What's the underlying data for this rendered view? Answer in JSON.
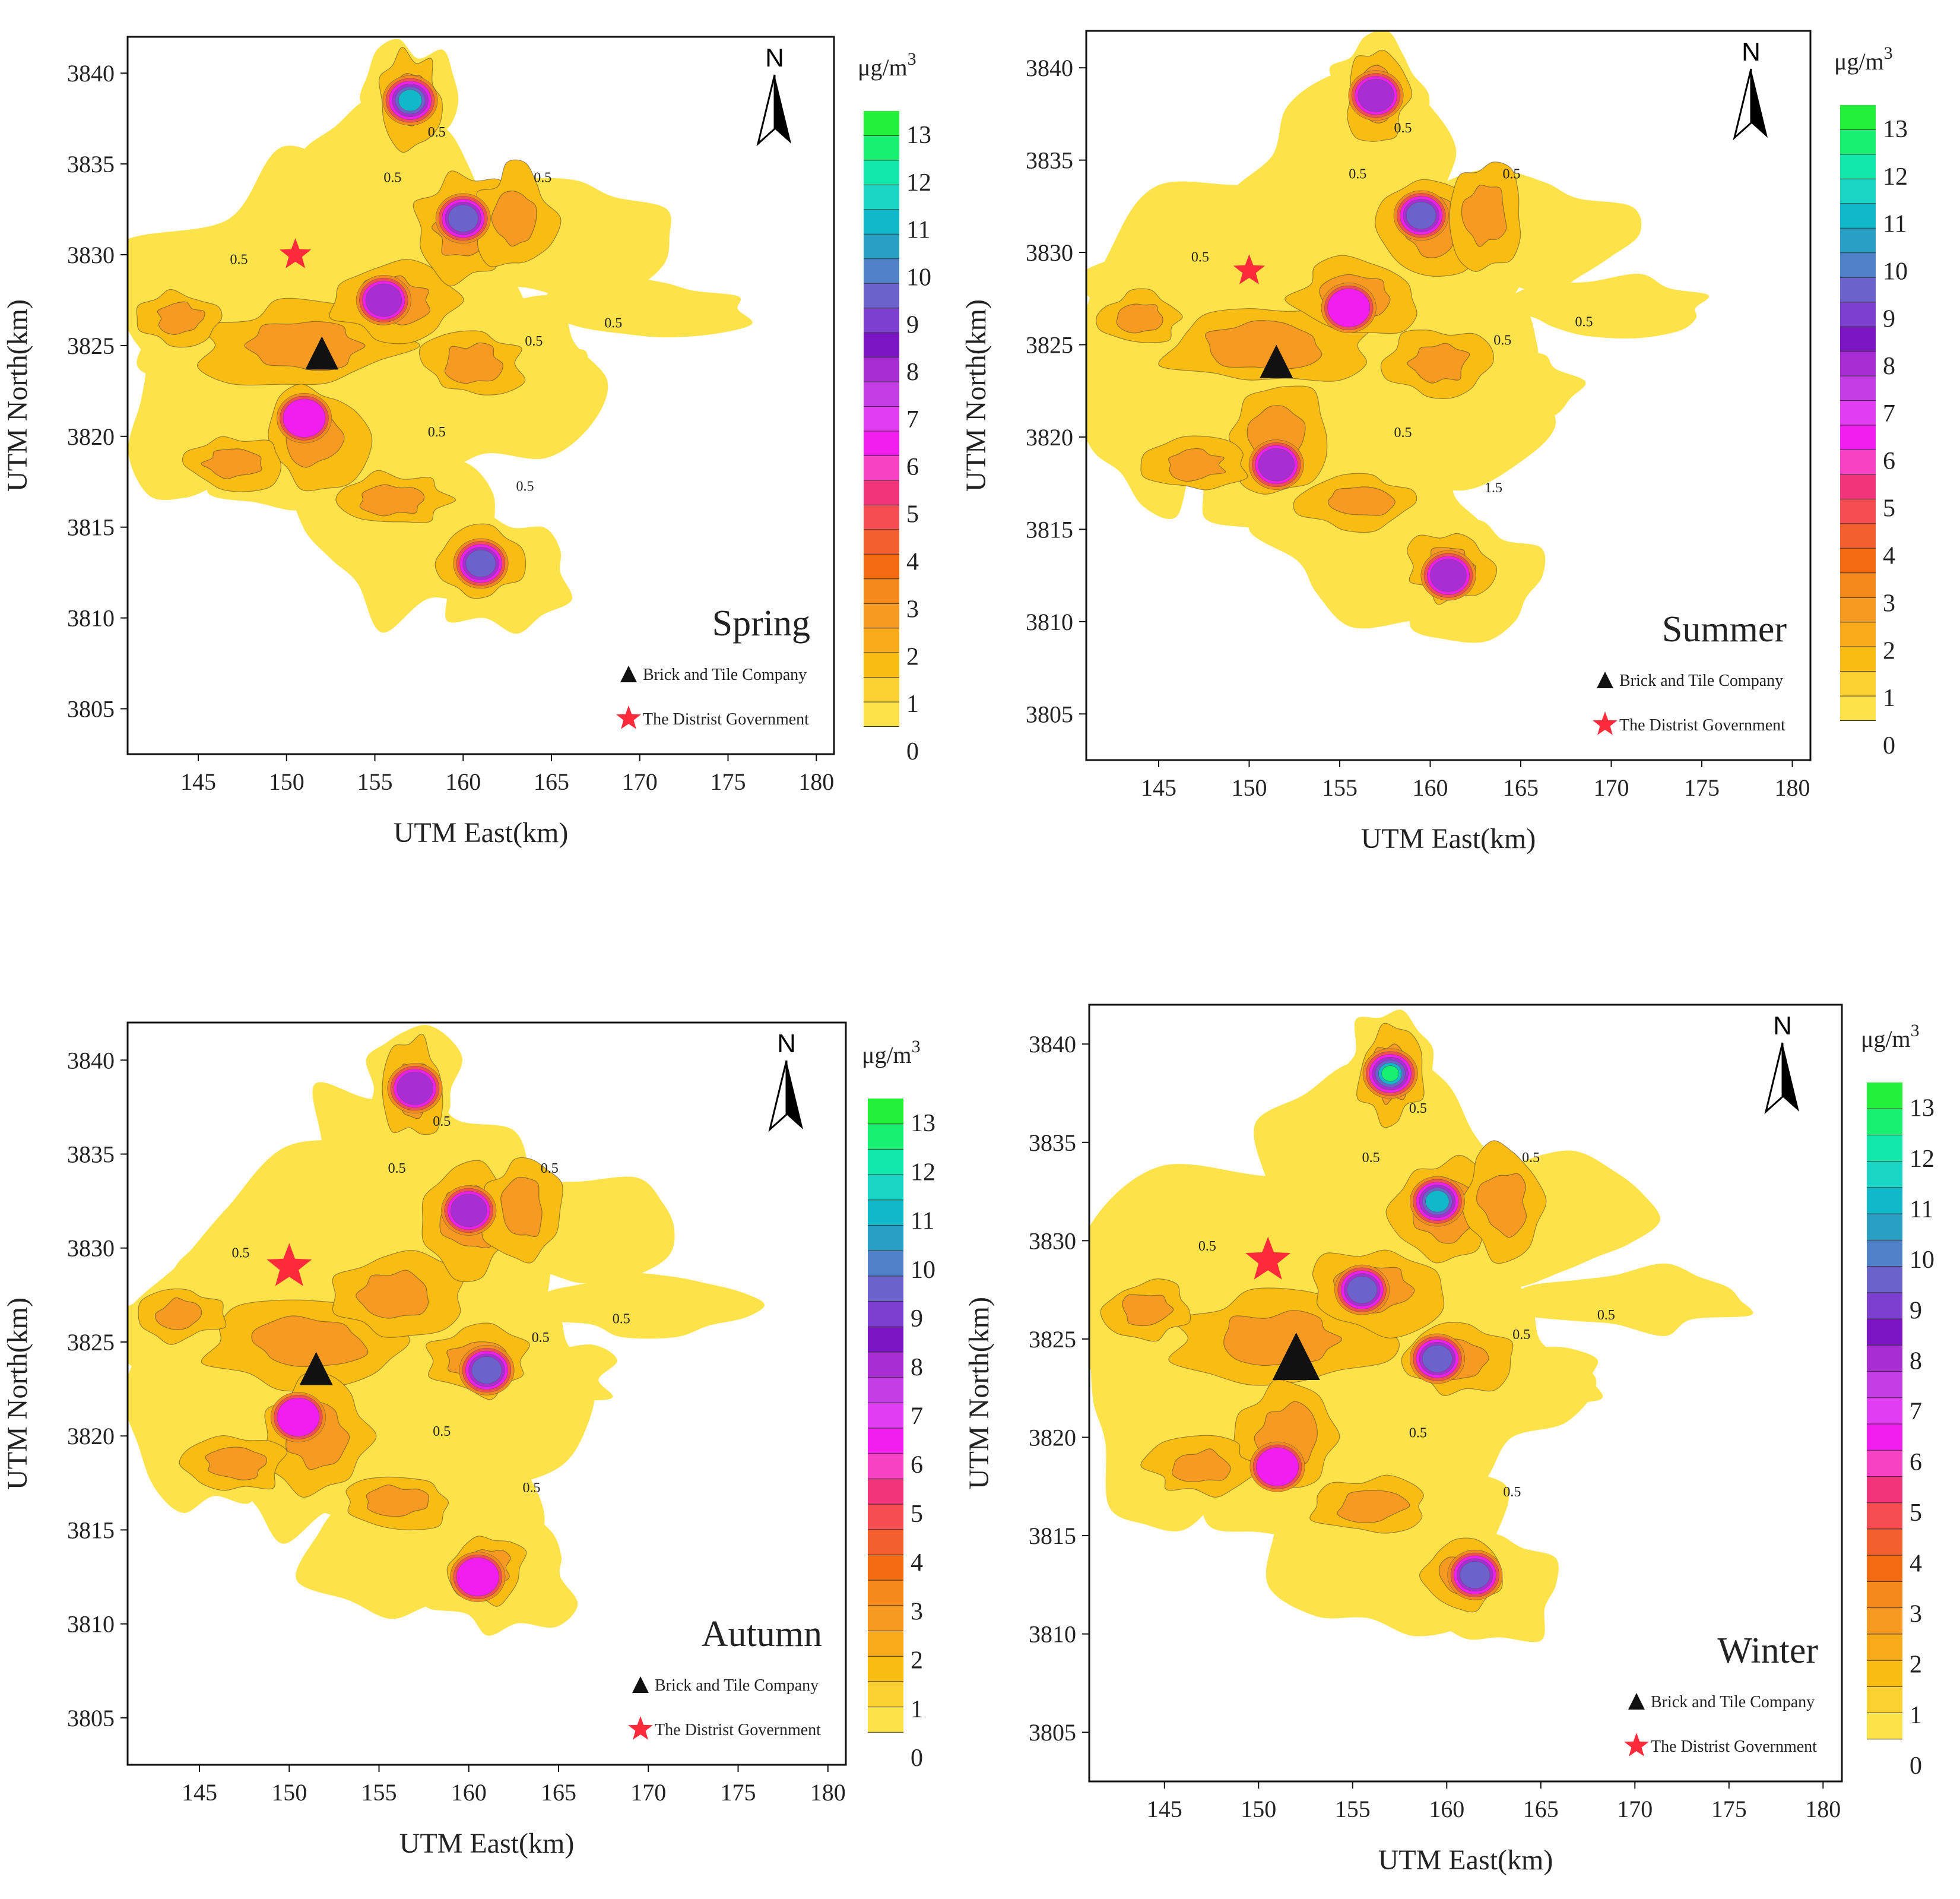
{
  "colors": {
    "frame": "#111111",
    "contour_line": "#333333",
    "triangle": "#111111",
    "star": "#ff2a3a",
    "north_arrow": "#000000"
  },
  "colorbar": {
    "unit_base": "μg/m",
    "unit_exp": "3",
    "ticks": [
      "0",
      "1",
      "2",
      "3",
      "4",
      "5",
      "6",
      "7",
      "8",
      "9",
      "10",
      "11",
      "12",
      "13"
    ],
    "bands": [
      "#ffffff",
      "#fde24a",
      "#fbd030",
      "#f9bc12",
      "#f9aa1b",
      "#f79a22",
      "#f5891c",
      "#f26b13",
      "#f55f2e",
      "#f64d52",
      "#f2357b",
      "#f742c5",
      "#f21ef0",
      "#e13ef4",
      "#c43ee6",
      "#a82ed4",
      "#7b15c4",
      "#7c3fd0",
      "#6c62cc",
      "#4f80c8",
      "#2a9fc4",
      "#10b9c9",
      "#1ad5c5",
      "#11e8a9",
      "#18f072",
      "#22f03a"
    ]
  },
  "legend": {
    "brick": "Brick and Tile Company",
    "gov": "The Distrist Government"
  },
  "north_label": "N",
  "chart_data": [
    {
      "type": "heatmap",
      "title": "Spring",
      "xlabel": "UTM East(km)",
      "ylabel": "UTM North(km)",
      "xlim": [
        141,
        181
      ],
      "ylim": [
        3802.5,
        3842
      ],
      "xticks": [
        145,
        150,
        155,
        160,
        165,
        170,
        175,
        180
      ],
      "yticks": [
        3805,
        3810,
        3815,
        3820,
        3825,
        3830,
        3835,
        3840
      ],
      "brick_and_tile_company": [
        152,
        3824.5
      ],
      "district_government": [
        150.5,
        3830
      ],
      "contour_labels": [
        "0.5",
        "0.5",
        "0.5",
        "0.5",
        "0.5",
        "0.5",
        "0.5",
        "0.5"
      ],
      "hotspots": [
        {
          "x": 157,
          "y": 3838.5,
          "peak": 11
        },
        {
          "x": 160,
          "y": 3832,
          "peak": 10
        },
        {
          "x": 155.5,
          "y": 3827.5,
          "peak": 8
        },
        {
          "x": 161,
          "y": 3813,
          "peak": 10
        },
        {
          "x": 151,
          "y": 3821,
          "peak": 7
        }
      ]
    },
    {
      "type": "heatmap",
      "title": "Summer",
      "xlabel": "UTM East(km)",
      "ylabel": "UTM North(km)",
      "xlim": [
        141,
        181
      ],
      "ylim": [
        3802.5,
        3842
      ],
      "xticks": [
        145,
        150,
        155,
        160,
        165,
        170,
        175,
        180
      ],
      "yticks": [
        3805,
        3810,
        3815,
        3820,
        3825,
        3830,
        3835,
        3840
      ],
      "brick_and_tile_company": [
        151.5,
        3824
      ],
      "district_government": [
        150,
        3829
      ],
      "contour_labels": [
        "0.5",
        "0.5",
        "0.5",
        "0.5",
        "0.5",
        "0.5",
        "1.5",
        "0.5"
      ],
      "hotspots": [
        {
          "x": 157,
          "y": 3838.5,
          "peak": 8
        },
        {
          "x": 159.5,
          "y": 3832,
          "peak": 10
        },
        {
          "x": 155.5,
          "y": 3827,
          "peak": 7
        },
        {
          "x": 161,
          "y": 3812.5,
          "peak": 8
        },
        {
          "x": 151.5,
          "y": 3818.5,
          "peak": 8
        }
      ]
    },
    {
      "type": "heatmap",
      "title": "Autumn",
      "xlabel": "UTM East(km)",
      "ylabel": "UTM North(km)",
      "xlim": [
        141,
        181
      ],
      "ylim": [
        3802.5,
        3842
      ],
      "xticks": [
        145,
        150,
        155,
        160,
        165,
        170,
        175,
        180
      ],
      "yticks": [
        3805,
        3810,
        3815,
        3820,
        3825,
        3830,
        3835,
        3840
      ],
      "brick_and_tile_company": [
        151.5,
        3823.5
      ],
      "district_government": [
        150,
        3829
      ],
      "contour_labels": [
        "0.5",
        "0.5",
        "0.5",
        "0.5",
        "0.5",
        "0.5",
        "0.5",
        "0.5"
      ],
      "hotspots": [
        {
          "x": 157,
          "y": 3838.5,
          "peak": 8
        },
        {
          "x": 160,
          "y": 3832,
          "peak": 8
        },
        {
          "x": 161,
          "y": 3823.5,
          "peak": 10
        },
        {
          "x": 160.5,
          "y": 3812.5,
          "peak": 7
        },
        {
          "x": 150.5,
          "y": 3821,
          "peak": 6
        }
      ]
    },
    {
      "type": "heatmap",
      "title": "Winter",
      "xlabel": "UTM East(km)",
      "ylabel": "UTM North(km)",
      "xlim": [
        141,
        181
      ],
      "ylim": [
        3802.5,
        3842
      ],
      "xticks": [
        145,
        150,
        155,
        160,
        165,
        170,
        175,
        180
      ],
      "yticks": [
        3805,
        3810,
        3815,
        3820,
        3825,
        3830,
        3835,
        3840
      ],
      "brick_and_tile_company": [
        152,
        3824
      ],
      "district_government": [
        150.5,
        3829
      ],
      "contour_labels": [
        "0.5",
        "0.5",
        "0.5",
        "0.5",
        "0.5",
        "0.5",
        "0.5",
        "0.5"
      ],
      "hotspots": [
        {
          "x": 157,
          "y": 3838.5,
          "peak": 12
        },
        {
          "x": 159.5,
          "y": 3832,
          "peak": 11
        },
        {
          "x": 155.5,
          "y": 3827.5,
          "peak": 9
        },
        {
          "x": 159.5,
          "y": 3824,
          "peak": 9
        },
        {
          "x": 161.5,
          "y": 3813,
          "peak": 9
        },
        {
          "x": 151,
          "y": 3818.5,
          "peak": 7
        }
      ]
    }
  ]
}
